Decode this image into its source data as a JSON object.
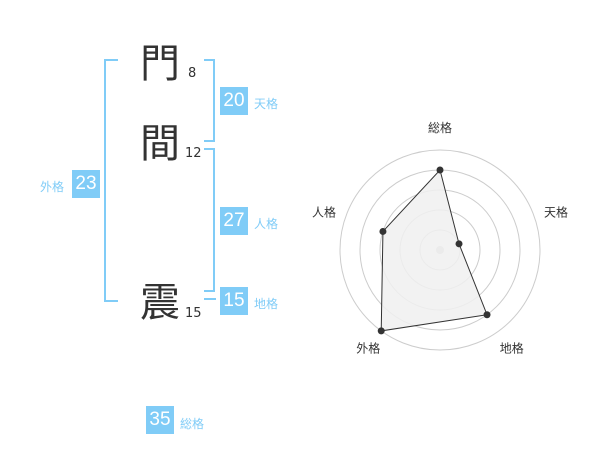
{
  "name": [
    {
      "char": "門",
      "strokes": "8"
    },
    {
      "char": "間",
      "strokes": "12"
    },
    {
      "char": "震",
      "strokes": "15"
    }
  ],
  "kaku": {
    "tenkaku": {
      "value": "20",
      "label": "天格"
    },
    "jinkaku": {
      "value": "27",
      "label": "人格"
    },
    "chikaku": {
      "value": "15",
      "label": "地格"
    },
    "gaikaku": {
      "value": "23",
      "label": "外格"
    },
    "soukaku": {
      "value": "35",
      "label": "総格"
    }
  },
  "colors": {
    "accent": "#80ccf7",
    "polygon_fill": "#f0f0f0",
    "polygon_stroke": "#333333",
    "ring": "#cccccc"
  },
  "chart_data": {
    "type": "radar",
    "axes": [
      "総格",
      "天格",
      "地格",
      "外格",
      "人格"
    ],
    "values": [
      4,
      1,
      4,
      5,
      3
    ],
    "range": [
      0,
      5
    ],
    "rings": 5
  }
}
